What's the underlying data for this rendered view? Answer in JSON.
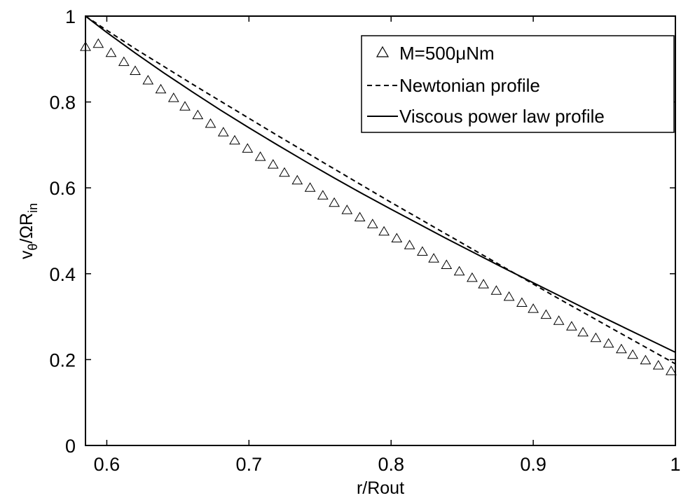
{
  "chart_data": {
    "type": "line",
    "xlabel": "r/Rout",
    "ylabel": {
      "main": "v",
      "sub1": "θ",
      "middle": "/ΩR",
      "sub2": "in"
    },
    "xlim": [
      0.585,
      1.0
    ],
    "ylim": [
      0,
      1
    ],
    "xticks": [
      0.6,
      0.7,
      0.8,
      0.9,
      1.0
    ],
    "xtick_labels": [
      "0.6",
      "0.7",
      "0.8",
      "0.9",
      "1"
    ],
    "yticks": [
      0,
      0.2,
      0.4,
      0.6,
      0.8,
      1.0
    ],
    "ytick_labels": [
      "0",
      "0.2",
      "0.4",
      "0.6",
      "0.8",
      "1"
    ],
    "grid": false,
    "legend_position": "top-right",
    "series": [
      {
        "name": "M=500μNm",
        "style": "triangle-markers",
        "x": [
          0.585,
          0.594,
          0.603,
          0.612,
          0.62,
          0.629,
          0.638,
          0.647,
          0.655,
          0.664,
          0.673,
          0.682,
          0.69,
          0.699,
          0.708,
          0.717,
          0.725,
          0.734,
          0.743,
          0.752,
          0.76,
          0.769,
          0.778,
          0.787,
          0.795,
          0.804,
          0.813,
          0.822,
          0.83,
          0.839,
          0.848,
          0.857,
          0.865,
          0.874,
          0.883,
          0.892,
          0.9,
          0.909,
          0.918,
          0.927,
          0.935,
          0.944,
          0.953,
          0.962,
          0.97,
          0.979,
          0.988,
          0.997
        ],
        "y": [
          0.928,
          0.935,
          0.914,
          0.893,
          0.872,
          0.85,
          0.829,
          0.809,
          0.789,
          0.769,
          0.749,
          0.729,
          0.71,
          0.691,
          0.672,
          0.654,
          0.635,
          0.617,
          0.6,
          0.582,
          0.565,
          0.548,
          0.531,
          0.515,
          0.498,
          0.482,
          0.466,
          0.451,
          0.435,
          0.42,
          0.405,
          0.39,
          0.375,
          0.36,
          0.346,
          0.332,
          0.318,
          0.304,
          0.29,
          0.277,
          0.263,
          0.25,
          0.237,
          0.224,
          0.211,
          0.198,
          0.186,
          0.173
        ]
      },
      {
        "name": "Newtonian profile",
        "style": "dashed",
        "x": [
          0.585,
          0.6,
          0.62,
          0.64,
          0.66,
          0.68,
          0.7,
          0.72,
          0.74,
          0.76,
          0.78,
          0.8,
          0.82,
          0.84,
          0.86,
          0.88,
          0.9,
          0.92,
          0.94,
          0.96,
          0.98,
          1.0
        ],
        "y": [
          1.0,
          0.967,
          0.924,
          0.883,
          0.842,
          0.802,
          0.762,
          0.722,
          0.683,
          0.644,
          0.605,
          0.566,
          0.528,
          0.49,
          0.452,
          0.414,
          0.376,
          0.338,
          0.301,
          0.264,
          0.227,
          0.19
        ]
      },
      {
        "name": "Viscous power law profile",
        "style": "solid",
        "x": [
          0.585,
          0.6,
          0.62,
          0.64,
          0.66,
          0.68,
          0.7,
          0.72,
          0.74,
          0.76,
          0.78,
          0.8,
          0.82,
          0.84,
          0.86,
          0.88,
          0.9,
          0.92,
          0.94,
          0.96,
          0.98,
          1.0
        ],
        "y": [
          1.0,
          0.962,
          0.914,
          0.868,
          0.824,
          0.781,
          0.74,
          0.7,
          0.661,
          0.623,
          0.586,
          0.55,
          0.515,
          0.48,
          0.446,
          0.412,
          0.379,
          0.346,
          0.313,
          0.281,
          0.249,
          0.217
        ]
      }
    ]
  },
  "colors": {
    "background": "#ffffff",
    "ink": "#000000"
  }
}
